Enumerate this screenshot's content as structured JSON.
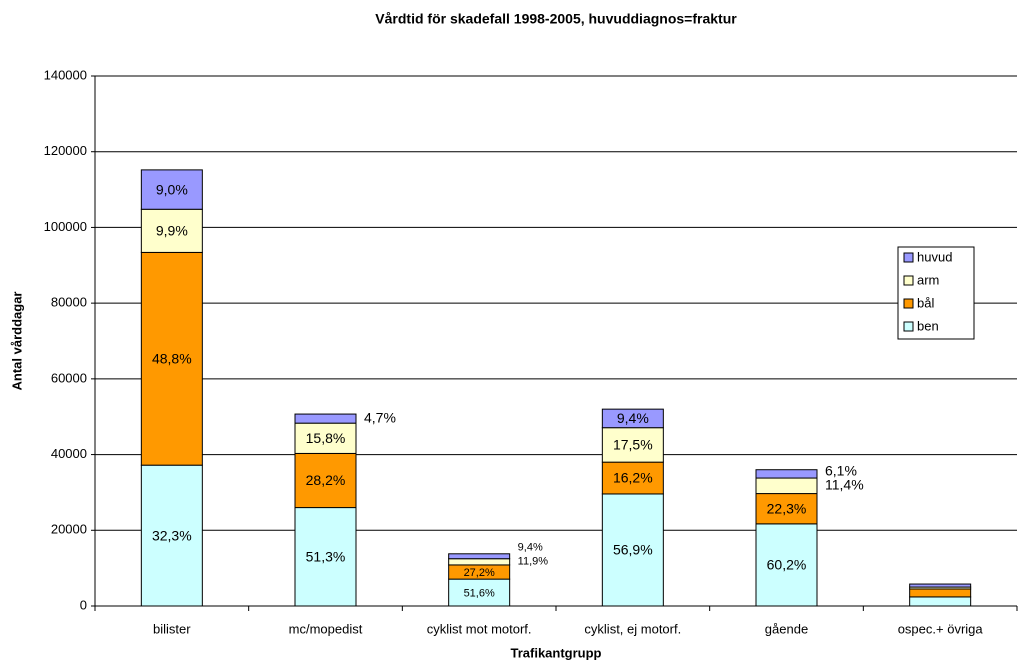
{
  "chart_data": {
    "type": "stacked-bar",
    "title": "Vårdtid för skadefall 1998-2005, huvuddiagnos=fraktur",
    "x_label": "Trafikantgrupp",
    "y_label": "Antal vårddagar",
    "categories": [
      "bilister",
      "mc/mopedist",
      "cyklist mot motorf.",
      "cyklist, ej motorf.",
      "gående",
      "ospec.+ övriga"
    ],
    "series": [
      {
        "name": "ben",
        "color": "#ccffff",
        "values": [
          37200,
          26000,
          7100,
          29600,
          21700,
          2400
        ],
        "value_labels": [
          "32,3%",
          "51,3%",
          "51,6%",
          "56,9%",
          "60,2%",
          null
        ]
      },
      {
        "name": "bål",
        "color": "#ff9900",
        "values": [
          56200,
          14300,
          3750,
          8400,
          8000,
          2100
        ],
        "value_labels": [
          "48,8%",
          "28,2%",
          "27,2%",
          "16,2%",
          "22,3%",
          null
        ]
      },
      {
        "name": "arm",
        "color": "#ffffcc",
        "values": [
          11400,
          8000,
          1640,
          9100,
          4100,
          500
        ],
        "value_labels": [
          "9,9%",
          "15,8%",
          "11,9%",
          "17,5%",
          "11,4%",
          null
        ]
      },
      {
        "name": "huvud",
        "color": "#9999ff",
        "values": [
          10400,
          2400,
          1300,
          4900,
          2200,
          800
        ],
        "value_labels": [
          "9,0%",
          "4,7%",
          "9,4%",
          "9,4%",
          "6,1%",
          null
        ]
      }
    ],
    "ylim": [
      0,
      140000
    ],
    "yticks": [
      0,
      20000,
      40000,
      60000,
      80000,
      100000,
      120000,
      140000
    ],
    "grid": true,
    "legend": "right"
  }
}
